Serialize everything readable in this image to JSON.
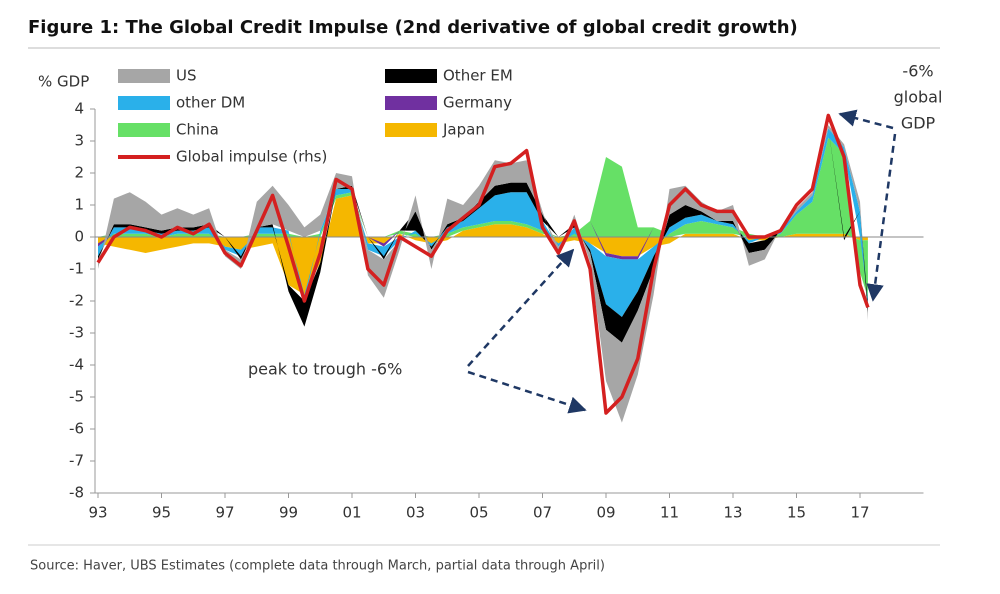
{
  "chart_data": {
    "type": "area",
    "title": "Figure 1: The Global Credit Impulse (2nd derivative of global credit growth)",
    "y_label": "% GDP",
    "source": "Source:  Haver, UBS Estimates (complete data through March, partial data through April)",
    "annotations": [
      "-6%",
      "global",
      "GDP",
      "peak to trough -6%"
    ],
    "x": [
      1993,
      1993.5,
      1994,
      1994.5,
      1995,
      1995.5,
      1996,
      1996.5,
      1997,
      1997.5,
      1998,
      1998.5,
      1999,
      1999.5,
      2000,
      2000.5,
      2001,
      2001.5,
      2002,
      2002.5,
      2003,
      2003.5,
      2004,
      2004.5,
      2005,
      2005.5,
      2006,
      2006.5,
      2007,
      2007.5,
      2008,
      2008.5,
      2009,
      2009.5,
      2010,
      2010.5,
      2011,
      2011.5,
      2012,
      2012.5,
      2013,
      2013.5,
      2014,
      2014.5,
      2015,
      2015.5,
      2016,
      2016.5,
      2017,
      2017.25
    ],
    "xlim": [
      1993,
      2019
    ],
    "xticks": [
      {
        "value": 1993,
        "label": "93"
      },
      {
        "value": 1995,
        "label": "95"
      },
      {
        "value": 1997,
        "label": "97"
      },
      {
        "value": 1999,
        "label": "99"
      },
      {
        "value": 2001,
        "label": "01"
      },
      {
        "value": 2003,
        "label": "03"
      },
      {
        "value": 2005,
        "label": "05"
      },
      {
        "value": 2007,
        "label": "07"
      },
      {
        "value": 2009,
        "label": "09"
      },
      {
        "value": 2011,
        "label": "11"
      },
      {
        "value": 2013,
        "label": "13"
      },
      {
        "value": 2015,
        "label": "15"
      },
      {
        "value": 2017,
        "label": "17"
      }
    ],
    "ylim": [
      -8,
      4
    ],
    "yticks": [
      4,
      3,
      2,
      1,
      0,
      -1,
      -2,
      -3,
      -4,
      -5,
      -6,
      -7,
      -8
    ],
    "series": [
      {
        "name": "US",
        "color": "#a6a6a6",
        "values": [
          -0.3,
          0.8,
          1.0,
          0.8,
          0.5,
          0.6,
          0.4,
          0.5,
          -0.2,
          -0.3,
          0.8,
          1.2,
          0.8,
          0.3,
          0.5,
          0.5,
          0.3,
          -0.8,
          -1.2,
          -0.3,
          0.5,
          -0.6,
          0.8,
          0.4,
          0.5,
          0.8,
          0.6,
          0.7,
          0.1,
          -0.3,
          0.3,
          -0.3,
          -1.6,
          -2.5,
          -2.0,
          -0.8,
          0.8,
          0.6,
          0.3,
          0.3,
          0.5,
          -0.4,
          -0.3,
          0.1,
          0.1,
          0.1,
          0.1,
          0.1,
          0.3,
          -0.2
        ]
      },
      {
        "name": "Other EM",
        "color": "#000000",
        "values": [
          -0.1,
          0.1,
          0.1,
          0.1,
          0.1,
          0.1,
          0.1,
          0.1,
          0,
          -0.1,
          0,
          0.1,
          -0.2,
          -0.8,
          -0.3,
          0,
          0.1,
          0,
          -0.1,
          0,
          0.6,
          -0.1,
          0.1,
          0.1,
          0.2,
          0.3,
          0.3,
          0.3,
          0.2,
          0,
          0.1,
          -0.1,
          -0.8,
          -0.8,
          -0.6,
          -0.4,
          0.4,
          0.4,
          0.1,
          0,
          0.1,
          -0.3,
          -0.3,
          0,
          0,
          0,
          0,
          -0.1,
          0,
          -0.3
        ]
      },
      {
        "name": "other DM",
        "color": "#2ab0ea",
        "values": [
          -0.3,
          0.2,
          0.2,
          0.1,
          0.1,
          0.1,
          0.1,
          0.2,
          -0.1,
          -0.2,
          0.2,
          0.2,
          0.1,
          -0.2,
          0.1,
          0.2,
          0.1,
          -0.2,
          -0.3,
          -0.1,
          0.1,
          -0.1,
          0.2,
          0.2,
          0.5,
          0.8,
          0.9,
          1.0,
          0.3,
          -0.1,
          0.2,
          -0.2,
          -1.5,
          -1.8,
          -1.0,
          -0.3,
          0.2,
          0.2,
          0.2,
          0.1,
          0.1,
          -0.1,
          0,
          0.1,
          0.1,
          0.2,
          0.3,
          0.2,
          0.8,
          -0.2
        ]
      },
      {
        "name": "Germany",
        "color": "#7030a0",
        "values": [
          -0.1,
          0,
          0,
          0,
          0,
          0,
          0,
          0,
          0,
          0,
          0,
          0,
          0,
          0,
          0,
          0,
          0,
          0,
          -0.1,
          0,
          0,
          0,
          0,
          0,
          0,
          0,
          0,
          0,
          0,
          0,
          0,
          0,
          -0.1,
          -0.1,
          -0.1,
          0,
          0,
          0,
          0,
          0,
          0,
          0,
          0,
          0,
          0,
          0,
          0,
          0,
          0,
          0
        ]
      },
      {
        "name": "China",
        "color": "#66e066",
        "values": [
          0,
          0.1,
          0.1,
          0.1,
          0,
          0.1,
          0.1,
          0.1,
          0,
          0,
          0.1,
          0.1,
          0.1,
          0,
          0.1,
          0.1,
          0.1,
          0,
          0,
          0.1,
          0.1,
          0,
          0.1,
          0.1,
          0.1,
          0.1,
          0.1,
          0.1,
          0.1,
          0,
          0.1,
          0.5,
          2.5,
          2.2,
          0.3,
          0.3,
          0.1,
          0.3,
          0.4,
          0.3,
          0.2,
          0.1,
          0,
          0.1,
          0.6,
          1.0,
          3.0,
          2.5,
          -1.0,
          -1.8
        ]
      },
      {
        "name": "Japan",
        "color": "#f5b700",
        "values": [
          -0.2,
          -0.3,
          -0.4,
          -0.5,
          -0.4,
          -0.3,
          -0.2,
          -0.2,
          -0.3,
          -0.4,
          -0.3,
          -0.2,
          -1.5,
          -1.8,
          -0.8,
          1.2,
          1.3,
          -0.2,
          -0.2,
          0.1,
          -0.1,
          -0.2,
          -0.1,
          0.2,
          0.3,
          0.4,
          0.4,
          0.3,
          0.1,
          -0.2,
          -0.1,
          -0.2,
          -0.5,
          -0.6,
          -0.6,
          -0.3,
          -0.2,
          0.1,
          0.1,
          0.1,
          0.1,
          -0.1,
          -0.1,
          0,
          0.1,
          0.1,
          0.1,
          0.1,
          -0.1,
          -0.1
        ]
      },
      {
        "name": "Global impulse (rhs)",
        "color": "#d42020",
        "type": "line",
        "values": [
          -0.8,
          0.0,
          0.3,
          0.2,
          0.0,
          0.3,
          0.1,
          0.4,
          -0.5,
          -0.9,
          0.2,
          1.3,
          -0.3,
          -2.0,
          -0.5,
          1.8,
          1.5,
          -1.0,
          -1.5,
          0.0,
          -0.3,
          -0.6,
          0.2,
          0.6,
          1.0,
          2.2,
          2.3,
          2.7,
          0.3,
          -0.5,
          0.5,
          -1.0,
          -5.5,
          -5.0,
          -3.8,
          -1.0,
          1.0,
          1.5,
          1.0,
          0.8,
          0.8,
          0.0,
          0.0,
          0.2,
          1.0,
          1.5,
          3.8,
          2.5,
          -1.5,
          -2.2
        ]
      }
    ]
  }
}
